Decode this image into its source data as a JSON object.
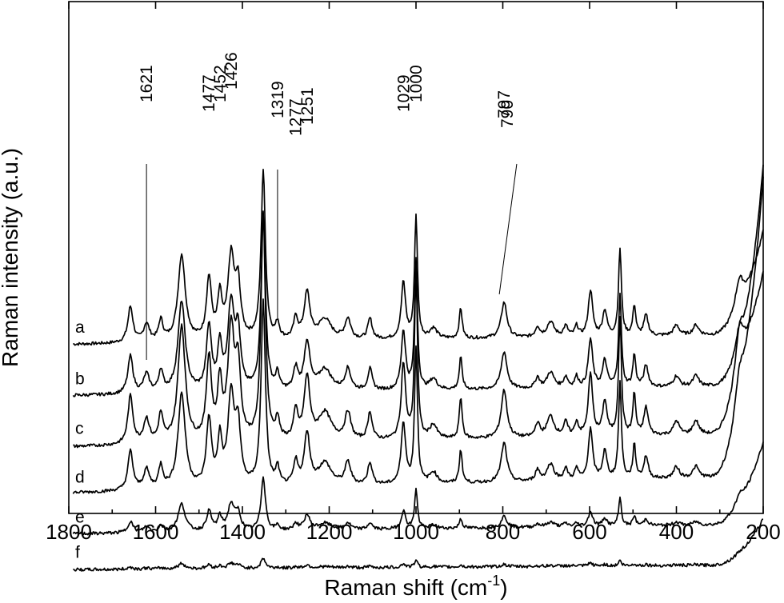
{
  "chart_data": {
    "type": "line",
    "xlabel": "Raman shift (cm",
    "xlabel_sup": "-1",
    "xlabel_tail": ")",
    "ylabel": "Raman intensity (a.u.)",
    "xlim": [
      1800,
      200
    ],
    "x_reversed": true,
    "ylim": [
      0,
      100
    ],
    "grid": false,
    "x_ticks": [
      1800,
      1600,
      1400,
      1200,
      1000,
      800,
      600,
      400,
      200
    ],
    "series": [
      {
        "name": "a",
        "baseline": 33,
        "amp": 1.0,
        "slope": 0.012,
        "tail": 20
      },
      {
        "name": "b",
        "baseline": 23,
        "amp": 1.05,
        "slope": 0.012,
        "tail": 22
      },
      {
        "name": "c",
        "baseline": 13,
        "amp": 1.35,
        "slope": 0.016,
        "tail": 52
      },
      {
        "name": "d",
        "baseline": 4,
        "amp": 1.1,
        "slope": 0.02,
        "tail": 58
      },
      {
        "name": "e",
        "baseline": -4,
        "amp": 0.32,
        "slope": 0.012,
        "tail": 16
      },
      {
        "name": "f",
        "baseline": -11,
        "amp": 0.06,
        "slope": 0.006,
        "tail": 9
      }
    ],
    "peaks": [
      {
        "x": 1658,
        "h": 7,
        "w": 7
      },
      {
        "x": 1621,
        "h": 3.5,
        "w": 8
      },
      {
        "x": 1588,
        "h": 4,
        "w": 6
      },
      {
        "x": 1540,
        "h": 17,
        "w": 10
      },
      {
        "x": 1477,
        "h": 12,
        "w": 7
      },
      {
        "x": 1452,
        "h": 8,
        "w": 6
      },
      {
        "x": 1426,
        "h": 16,
        "w": 9
      },
      {
        "x": 1410,
        "h": 10,
        "w": 7
      },
      {
        "x": 1352,
        "h": 33,
        "w": 6
      },
      {
        "x": 1319,
        "h": 3,
        "w": 5
      },
      {
        "x": 1277,
        "h": 4,
        "w": 6
      },
      {
        "x": 1251,
        "h": 9,
        "w": 8
      },
      {
        "x": 1210,
        "h": 4,
        "w": 18
      },
      {
        "x": 1157,
        "h": 4,
        "w": 8
      },
      {
        "x": 1106,
        "h": 4,
        "w": 6
      },
      {
        "x": 1029,
        "h": 11,
        "w": 6
      },
      {
        "x": 1000,
        "h": 24,
        "w": 4
      },
      {
        "x": 960,
        "h": 2,
        "w": 10
      },
      {
        "x": 897,
        "h": 6,
        "w": 4
      },
      {
        "x": 797,
        "h": 7,
        "w": 8
      },
      {
        "x": 720,
        "h": 2,
        "w": 6
      },
      {
        "x": 690,
        "h": 3,
        "w": 10
      },
      {
        "x": 655,
        "h": 2,
        "w": 6
      },
      {
        "x": 630,
        "h": 2,
        "w": 5
      },
      {
        "x": 598,
        "h": 9,
        "w": 6
      },
      {
        "x": 565,
        "h": 5,
        "w": 6
      },
      {
        "x": 530,
        "h": 17,
        "w": 4
      },
      {
        "x": 497,
        "h": 6,
        "w": 4
      },
      {
        "x": 470,
        "h": 4,
        "w": 6
      },
      {
        "x": 400,
        "h": 2,
        "w": 8
      },
      {
        "x": 355,
        "h": 2,
        "w": 8
      },
      {
        "x": 255,
        "h": 6,
        "w": 12
      }
    ],
    "annotations": [
      {
        "label": "1621",
        "x": 1621
      },
      {
        "label": "1477",
        "x": 1477
      },
      {
        "label": "1452",
        "x": 1452
      },
      {
        "label": "1426",
        "x": 1426
      },
      {
        "label": "1319",
        "x": 1319
      },
      {
        "label": "1277",
        "x": 1277
      },
      {
        "label": "1251",
        "x": 1251
      },
      {
        "label": "1029",
        "x": 1029
      },
      {
        "label": "1000",
        "x": 1000
      },
      {
        "label": "797",
        "x": 797
      },
      {
        "label": "790",
        "x": 790
      }
    ]
  }
}
